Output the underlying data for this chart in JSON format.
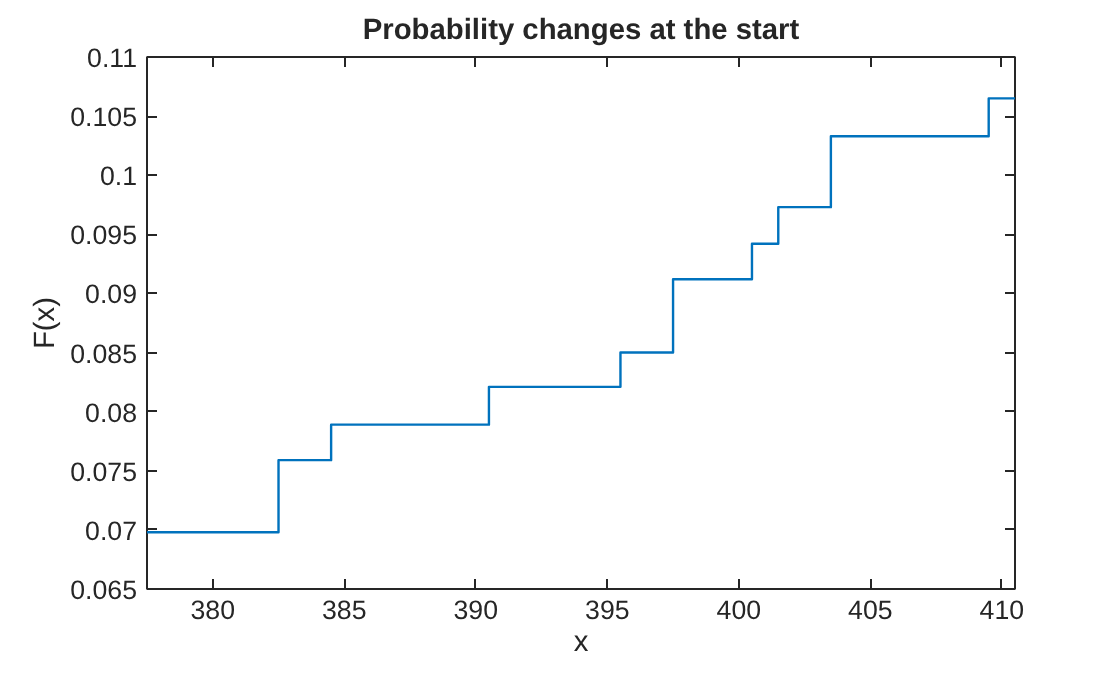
{
  "chart_data": {
    "type": "step",
    "title": "Probability changes at the start",
    "xlabel": "x",
    "ylabel": "F(x)",
    "x": [
      377.5,
      382.5,
      384.5,
      390.5,
      395.5,
      397.5,
      400.5,
      401.5,
      403.5,
      409.5,
      410.5
    ],
    "series": [
      {
        "color": "#0072bd",
        "values": [
          0.0698,
          0.0759,
          0.0789,
          0.0821,
          0.085,
          0.0912,
          0.0942,
          0.0973,
          0.1033,
          0.1065,
          0.1065
        ]
      }
    ],
    "xlim": [
      377.5,
      410.5
    ],
    "ylim": [
      0.065,
      0.11
    ],
    "xticks": [
      380,
      385,
      390,
      395,
      400,
      405,
      410
    ],
    "yticks": [
      0.065,
      0.07,
      0.075,
      0.08,
      0.085,
      0.09,
      0.095,
      0.1,
      0.105,
      0.11
    ]
  }
}
